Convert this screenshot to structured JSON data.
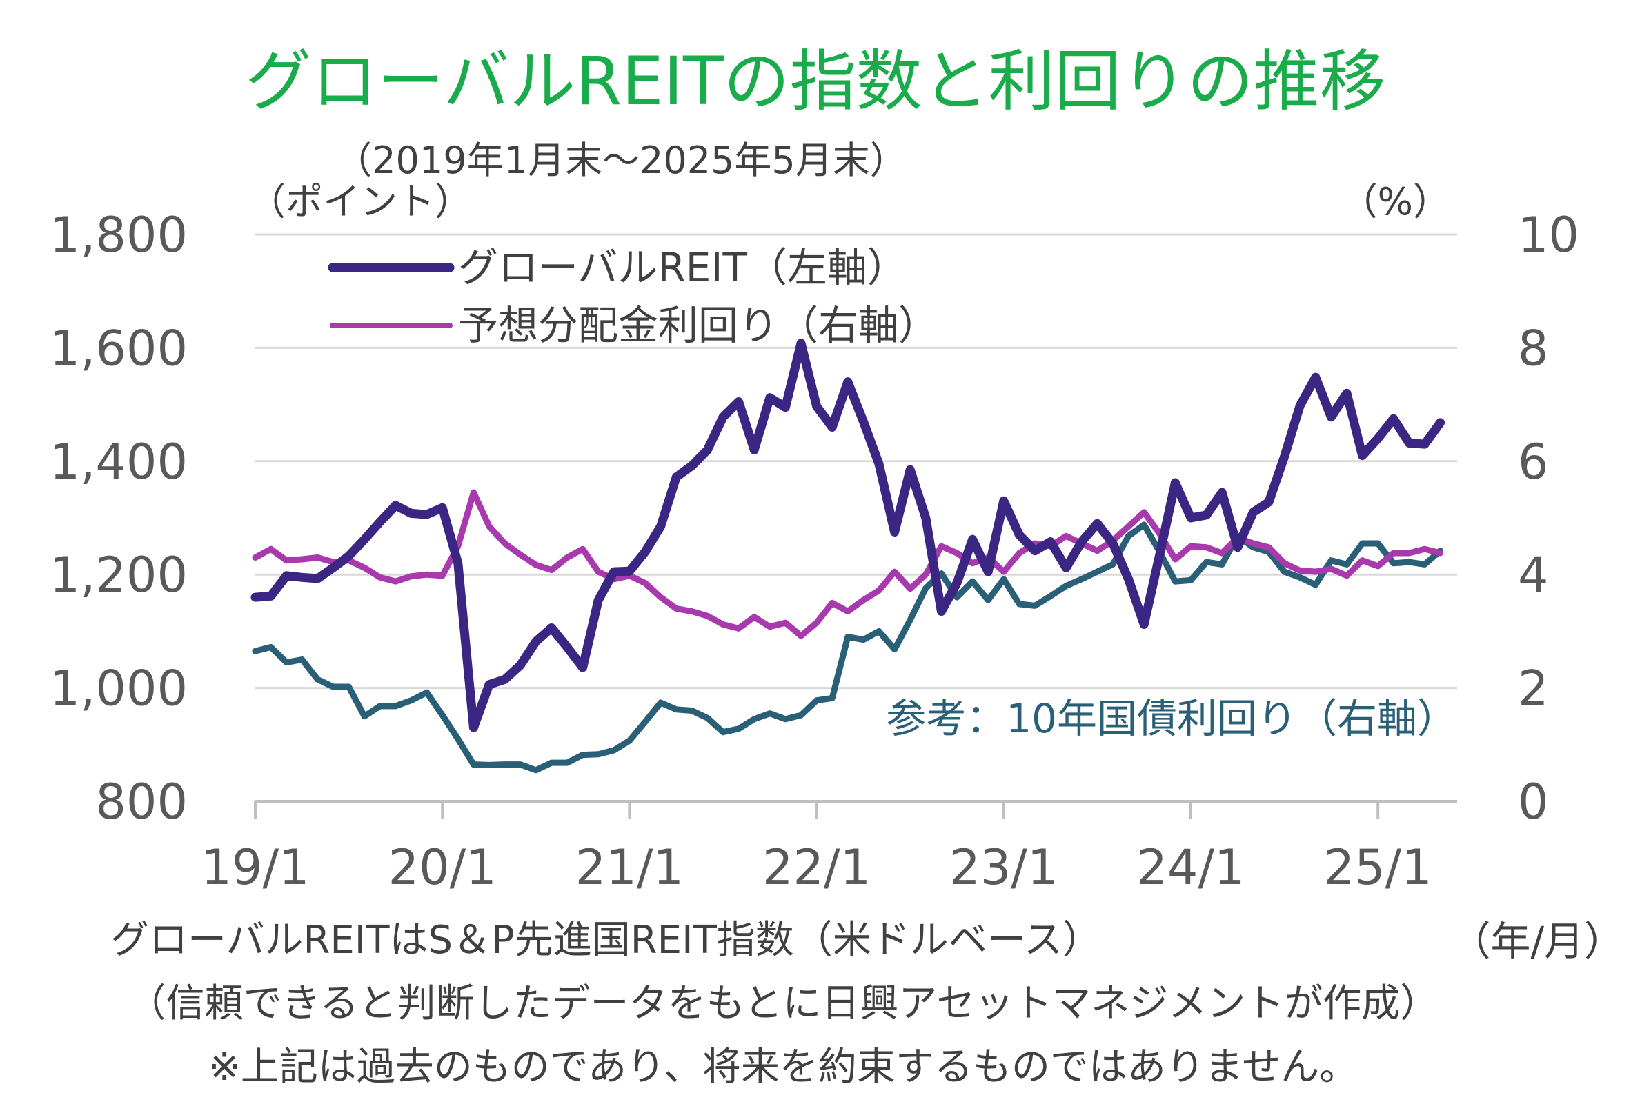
{
  "chart_data": {
    "type": "line",
    "title": "グローバルREITの指数と利回りの推移",
    "subtitle": "（2019年1月末～2025年5月末）",
    "y_left_unit": "（ポイント）",
    "y_right_unit": "（%）",
    "x_unit": "（年/月）",
    "x_ticks": [
      "19/1",
      "20/1",
      "21/1",
      "22/1",
      "23/1",
      "24/1",
      "25/1"
    ],
    "y_left_ticks": [
      "1,800",
      "1,600",
      "1,400",
      "1,200",
      "1,000",
      "800"
    ],
    "y_right_ticks": [
      "10",
      "8",
      "6",
      "4",
      "2",
      "0"
    ],
    "y_left_lim": [
      800,
      1800
    ],
    "y_right_lim": [
      0,
      10
    ],
    "x_range": [
      "2019-01",
      "2025-05"
    ],
    "grid": true,
    "legend_position": "top-left",
    "series": [
      {
        "name": "グローバルREIT（左軸）",
        "axis": "left",
        "color": "#3b2683",
        "values": [
          1160,
          1162,
          1198,
          1195,
          1193,
          1212,
          1233,
          1262,
          1293,
          1322,
          1308,
          1306,
          1318,
          1220,
          930,
          1006,
          1015,
          1040,
          1082,
          1106,
          1072,
          1036,
          1155,
          1205,
          1206,
          1240,
          1285,
          1372,
          1392,
          1420,
          1478,
          1505,
          1420,
          1512,
          1495,
          1608,
          1497,
          1460,
          1540,
          1470,
          1395,
          1275,
          1385,
          1300,
          1135,
          1185,
          1262,
          1205,
          1330,
          1270,
          1242,
          1258,
          1212,
          1258,
          1290,
          1255,
          1192,
          1112,
          1235,
          1362,
          1300,
          1305,
          1345,
          1248,
          1310,
          1328,
          1408,
          1498,
          1548,
          1478,
          1520,
          1410,
          1440,
          1475,
          1432,
          1430,
          1468
        ]
      },
      {
        "name": "予想分配金利回り（右軸）",
        "axis": "right",
        "color": "#a83aad",
        "values": [
          4.3,
          4.45,
          4.25,
          4.27,
          4.3,
          4.22,
          4.25,
          4.12,
          3.95,
          3.88,
          3.97,
          4.0,
          3.98,
          4.5,
          5.45,
          4.85,
          4.55,
          4.35,
          4.17,
          4.08,
          4.3,
          4.45,
          4.05,
          3.92,
          3.98,
          3.85,
          3.6,
          3.4,
          3.35,
          3.27,
          3.12,
          3.05,
          3.25,
          3.08,
          3.15,
          2.92,
          3.15,
          3.5,
          3.35,
          3.55,
          3.72,
          4.05,
          3.75,
          4.0,
          4.5,
          4.38,
          4.2,
          4.3,
          4.05,
          4.38,
          4.55,
          4.5,
          4.68,
          4.55,
          4.42,
          4.6,
          4.85,
          5.1,
          4.72,
          4.27,
          4.5,
          4.48,
          4.38,
          4.65,
          4.55,
          4.48,
          4.2,
          4.07,
          4.05,
          4.1,
          3.98,
          4.25,
          4.15,
          4.38,
          4.38,
          4.45,
          4.38
        ]
      }
    ],
    "reference_series": {
      "label": "参考：10年国債利回り（右軸）",
      "axis": "right",
      "color": "#2a5f78",
      "values": [
        2.65,
        2.72,
        2.45,
        2.5,
        2.15,
        2.02,
        2.02,
        1.5,
        1.68,
        1.68,
        1.78,
        1.92,
        1.52,
        1.1,
        0.65,
        0.64,
        0.65,
        0.65,
        0.55,
        0.68,
        0.68,
        0.82,
        0.83,
        0.9,
        1.07,
        1.4,
        1.74,
        1.62,
        1.6,
        1.47,
        1.22,
        1.28,
        1.45,
        1.55,
        1.45,
        1.52,
        1.78,
        1.82,
        2.9,
        2.85,
        3.0,
        2.68,
        3.2,
        3.76,
        4.02,
        3.6,
        3.88,
        3.55,
        3.92,
        3.48,
        3.45,
        3.62,
        3.8,
        3.92,
        4.05,
        4.18,
        4.68,
        4.88,
        4.4,
        3.88,
        3.9,
        4.22,
        4.18,
        4.68,
        4.48,
        4.4,
        4.05,
        3.95,
        3.82,
        4.25,
        4.18,
        4.55,
        4.55,
        4.2,
        4.22,
        4.18,
        4.42
      ]
    }
  },
  "notes": {
    "source": "グローバルREITはS＆P先進国REIT指数（米ドルベース）",
    "maker": "（信頼できると判断したデータをもとに日興アセットマネジメントが作成）",
    "disclaimer": "※上記は過去のものであり、将来を約束するものではありません。"
  }
}
